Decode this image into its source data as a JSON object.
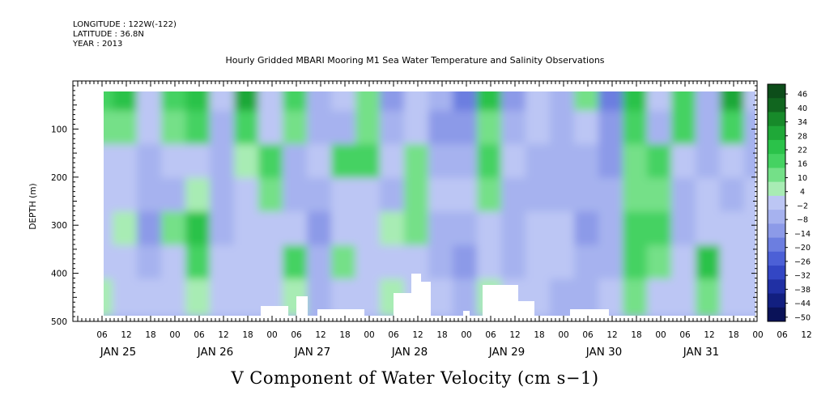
{
  "chart_data": {
    "type": "heatmap",
    "header": {
      "longitude": "LONGITUDE : 122W(-122)",
      "latitude": "LATITUDE : 36.8N",
      "year": "YEAR : 2013"
    },
    "title": "Hourly Gridded MBARI Mooring M1 Sea Water Temperature and Salinity Observations",
    "subtitle": "V Component of Water Velocity (cm s−1)",
    "ylabel": "DEPTH (m)",
    "ylim": [
      500,
      0
    ],
    "y_ticks": [
      "100",
      "200",
      "300",
      "400",
      "500"
    ],
    "x_hour_labels": [
      "06",
      "12",
      "18",
      "00",
      "06",
      "12",
      "18",
      "00",
      "06",
      "12",
      "18",
      "00",
      "06",
      "12",
      "18",
      "00",
      "06",
      "12",
      "18",
      "00",
      "06",
      "12",
      "18",
      "00",
      "06",
      "12",
      "18",
      "00",
      "06",
      "12",
      "18",
      "00"
    ],
    "x_day_labels": [
      "JAN 25",
      "JAN 26",
      "JAN 27",
      "JAN 28",
      "JAN 29",
      "JAN 30",
      "JAN 31"
    ],
    "colorbar": {
      "levels": [
        "46",
        "40",
        "34",
        "28",
        "22",
        "16",
        "10",
        "4",
        "−2",
        "−8",
        "−14",
        "−20",
        "−26",
        "−32",
        "−38",
        "−44",
        "−50"
      ],
      "colors": [
        "#0d4d1a",
        "#11661f",
        "#178a2a",
        "#1fa838",
        "#2bc24a",
        "#45d262",
        "#74e088",
        "#a8ecb4",
        "#bcc6f4",
        "#a6b2ef",
        "#8c9ae8",
        "#6c7ee0",
        "#4c60d6",
        "#3346c4",
        "#2030a4",
        "#121f80",
        "#0a1258"
      ]
    },
    "columns": [
      {
        "time": "JAN 25 00",
        "v": [
          10,
          2,
          -6,
          -10,
          -8,
          -10,
          -6
        ]
      },
      {
        "time": "JAN 25 06",
        "v": [
          12,
          8,
          -4,
          -8,
          -6,
          -4,
          -2
        ]
      },
      {
        "time": "JAN 25 12",
        "v": [
          16,
          4,
          -8,
          -4,
          2,
          -4,
          -6
        ]
      },
      {
        "time": "JAN 25 18",
        "v": [
          -4,
          -8,
          -12,
          -14,
          -16,
          -10,
          -8
        ]
      },
      {
        "time": "JAN 26 00",
        "v": [
          14,
          6,
          -6,
          -10,
          6,
          -4,
          -6
        ]
      },
      {
        "time": "JAN 26 06",
        "v": [
          20,
          10,
          -4,
          2,
          16,
          14,
          -2
        ]
      },
      {
        "time": "JAN 26 12",
        "v": [
          -6,
          -10,
          -14,
          -12,
          -10,
          -6,
          -8
        ]
      },
      {
        "time": "JAN 26 18",
        "v": [
          22,
          12,
          -2,
          -8,
          -4,
          -6,
          -4
        ]
      },
      {
        "time": "JAN 27 00",
        "v": [
          -4,
          -8,
          10,
          4,
          -6,
          -8,
          -6
        ]
      },
      {
        "time": "JAN 27 06",
        "v": [
          14,
          4,
          -10,
          -14,
          -8,
          12,
          -2
        ]
      },
      {
        "time": "JAN 27 12",
        "v": [
          -10,
          -12,
          -6,
          -12,
          -16,
          -12,
          -10
        ]
      },
      {
        "time": "JAN 27 18",
        "v": [
          -8,
          -10,
          10,
          -6,
          -4,
          6,
          -4
        ]
      },
      {
        "time": "JAN 28 00",
        "v": [
          4,
          6,
          12,
          -4,
          -6,
          -8,
          -6
        ]
      },
      {
        "time": "JAN 28 06",
        "v": [
          -18,
          -14,
          -8,
          -10,
          2,
          -4,
          -2
        ]
      },
      {
        "time": "JAN 28 12",
        "v": [
          -8,
          -4,
          6,
          4,
          8,
          -4,
          -6
        ]
      },
      {
        "time": "JAN 28 18",
        "v": [
          -12,
          -16,
          -10,
          -6,
          -10,
          -14,
          -8
        ]
      },
      {
        "time": "JAN 29 00",
        "v": [
          -22,
          -16,
          -10,
          -8,
          -12,
          -20,
          -14
        ]
      },
      {
        "time": "JAN 29 06",
        "v": [
          16,
          8,
          14,
          4,
          -4,
          -6,
          -2
        ]
      },
      {
        "time": "JAN 29 12",
        "v": [
          -18,
          -12,
          -8,
          -10,
          -14,
          -12,
          -8
        ]
      },
      {
        "time": "JAN 29 18",
        "v": [
          -6,
          -8,
          -12,
          -10,
          -8,
          -6,
          -6
        ]
      },
      {
        "time": "JAN 30 00",
        "v": [
          -10,
          -12,
          -14,
          -12,
          -6,
          -8,
          -10
        ]
      },
      {
        "time": "JAN 30 06",
        "v": [
          8,
          -6,
          -10,
          -14,
          -16,
          -12,
          -10
        ]
      },
      {
        "time": "JAN 30 12",
        "v": [
          -26,
          -20,
          -16,
          -14,
          -12,
          -10,
          -8
        ]
      },
      {
        "time": "JAN 30 18",
        "v": [
          20,
          10,
          8,
          6,
          12,
          10,
          8
        ]
      },
      {
        "time": "JAN 31 00",
        "v": [
          -6,
          -10,
          14,
          8,
          12,
          4,
          -4
        ]
      },
      {
        "time": "JAN 31 06",
        "v": [
          10,
          12,
          -8,
          -12,
          -10,
          -8,
          -6
        ]
      },
      {
        "time": "JAN 31 12",
        "v": [
          -14,
          -12,
          -10,
          -6,
          -4,
          16,
          6
        ]
      },
      {
        "time": "JAN 31 18",
        "v": [
          24,
          10,
          -8,
          -10,
          -8,
          -6,
          -4
        ]
      },
      {
        "time": "FEB 01 00",
        "v": [
          -8,
          -10,
          -10,
          -8,
          -6,
          -4,
          -4
        ]
      }
    ],
    "column_depths_m": [
      30,
      100,
      170,
      240,
      310,
      380,
      450
    ]
  }
}
